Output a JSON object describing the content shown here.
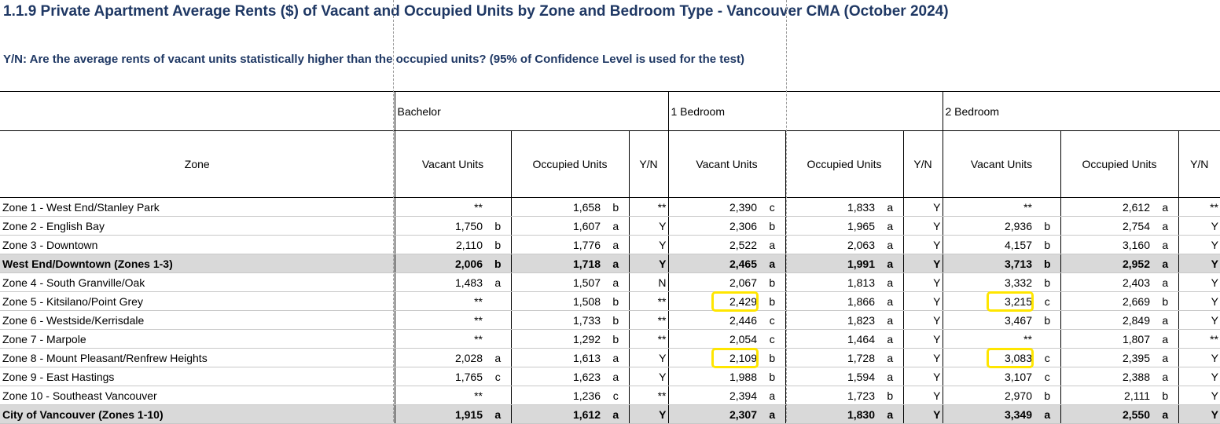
{
  "title": "1.1.9 Private Apartment Average Rents ($) of Vacant and Occupied Units by Zone and Bedroom Type - Vancouver CMA (October 2024)",
  "subtitle": "Y/N: Are the average rents of vacant units statistically higher than the occupied units? (95% of Confidence Level is used for the test)",
  "headers": {
    "groups": [
      "Bachelor",
      "1 Bedroom",
      "2 Bedroom"
    ],
    "zone": "Zone",
    "vacant": "Vacant Units",
    "occupied": "Occupied Units",
    "yn": "Y/N"
  },
  "rows": [
    {
      "zone": "Zone 1 - West End/Stanley Park",
      "bold": false,
      "cells": [
        "**",
        "",
        "1,658",
        "b",
        "**",
        "2,390",
        "c",
        "1,833",
        "a",
        "Y",
        "**",
        "",
        "2,612",
        "a",
        "**"
      ]
    },
    {
      "zone": "Zone 2 - English Bay",
      "bold": false,
      "cells": [
        "1,750",
        "b",
        "1,607",
        "a",
        "Y",
        "2,306",
        "b",
        "1,965",
        "a",
        "Y",
        "2,936",
        "b",
        "2,754",
        "a",
        "Y"
      ]
    },
    {
      "zone": "Zone 3 - Downtown",
      "bold": false,
      "cells": [
        "2,110",
        "b",
        "1,776",
        "a",
        "Y",
        "2,522",
        "a",
        "2,063",
        "a",
        "Y",
        "4,157",
        "b",
        "3,160",
        "a",
        "Y"
      ]
    },
    {
      "zone": "West End/Downtown (Zones 1-3)",
      "bold": true,
      "cells": [
        "2,006",
        "b",
        "1,718",
        "a",
        "Y",
        "2,465",
        "a",
        "1,991",
        "a",
        "Y",
        "3,713",
        "b",
        "2,952",
        "a",
        "Y"
      ]
    },
    {
      "zone": "Zone 4 - South Granville/Oak",
      "bold": false,
      "cells": [
        "1,483",
        "a",
        "1,507",
        "a",
        "N",
        "2,067",
        "b",
        "1,813",
        "a",
        "Y",
        "3,332",
        "b",
        "2,403",
        "a",
        "Y"
      ]
    },
    {
      "zone": "Zone 5 - Kitsilano/Point Grey",
      "bold": false,
      "cells": [
        "**",
        "",
        "1,508",
        "b",
        "**",
        "2,429",
        "b",
        "1,866",
        "a",
        "Y",
        "3,215",
        "c",
        "2,669",
        "b",
        "Y"
      ]
    },
    {
      "zone": "Zone 6 - Westside/Kerrisdale",
      "bold": false,
      "cells": [
        "**",
        "",
        "1,733",
        "b",
        "**",
        "2,446",
        "c",
        "1,823",
        "a",
        "Y",
        "3,467",
        "b",
        "2,849",
        "a",
        "Y"
      ]
    },
    {
      "zone": "Zone 7 - Marpole",
      "bold": false,
      "cells": [
        "**",
        "",
        "1,292",
        "b",
        "**",
        "2,054",
        "c",
        "1,464",
        "a",
        "Y",
        "**",
        "",
        "1,807",
        "a",
        "**"
      ]
    },
    {
      "zone": "Zone 8 - Mount Pleasant/Renfrew Heights",
      "bold": false,
      "cells": [
        "2,028",
        "a",
        "1,613",
        "a",
        "Y",
        "2,109",
        "b",
        "1,728",
        "a",
        "Y",
        "3,083",
        "c",
        "2,395",
        "a",
        "Y"
      ]
    },
    {
      "zone": "Zone 9 - East Hastings",
      "bold": false,
      "cells": [
        "1,765",
        "c",
        "1,623",
        "a",
        "Y",
        "1,988",
        "b",
        "1,594",
        "a",
        "Y",
        "3,107",
        "c",
        "2,388",
        "a",
        "Y"
      ]
    },
    {
      "zone": "Zone 10 - Southeast Vancouver",
      "bold": false,
      "cells": [
        "**",
        "",
        "1,236",
        "c",
        "**",
        "2,394",
        "a",
        "1,723",
        "b",
        "Y",
        "2,970",
        "b",
        "2,111",
        "b",
        "Y"
      ]
    },
    {
      "zone": "City of Vancouver (Zones 1-10)",
      "bold": true,
      "cells": [
        "1,915",
        "a",
        "1,612",
        "a",
        "Y",
        "2,307",
        "a",
        "1,830",
        "a",
        "Y",
        "3,349",
        "a",
        "2,550",
        "a",
        "Y"
      ]
    }
  ],
  "highlight_color": "#ffe600",
  "highlights": [
    {
      "row": 5,
      "cell": 5,
      "value": "2,429"
    },
    {
      "row": 8,
      "cell": 5,
      "value": "2,109"
    },
    {
      "row": 5,
      "cell": 10,
      "value": "3,215"
    },
    {
      "row": 8,
      "cell": 10,
      "value": "3,083"
    }
  ]
}
